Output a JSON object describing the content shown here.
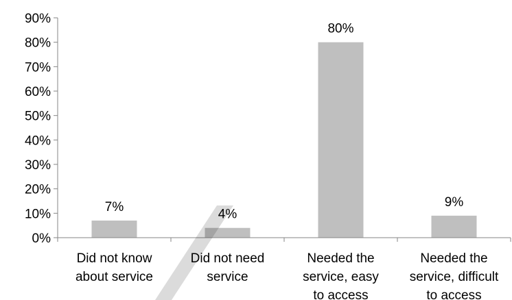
{
  "chart_data": {
    "type": "bar",
    "title": "",
    "xlabel": "",
    "ylabel": "",
    "categories": [
      [
        "Did not know",
        "about service"
      ],
      [
        "Did not need",
        "service"
      ],
      [
        "Needed the",
        "service, easy",
        "to access"
      ],
      [
        "Needed the",
        "service, difficult",
        "to access"
      ]
    ],
    "values": [
      7,
      4,
      80,
      9
    ],
    "data_labels": [
      "7%",
      "4%",
      "80%",
      "9%"
    ],
    "y_ticks": [
      0,
      10,
      20,
      30,
      40,
      50,
      60,
      70,
      80,
      90
    ],
    "y_tick_labels": [
      "0%",
      "10%",
      "20%",
      "30%",
      "40%",
      "50%",
      "60%",
      "70%",
      "80%",
      "90%"
    ],
    "ylim": [
      0,
      90
    ],
    "grid": false,
    "legend": "none",
    "colors": {
      "bar": "#bfbfbf",
      "axis": "#868686",
      "text": "#000000",
      "watermark": "#000000"
    }
  }
}
